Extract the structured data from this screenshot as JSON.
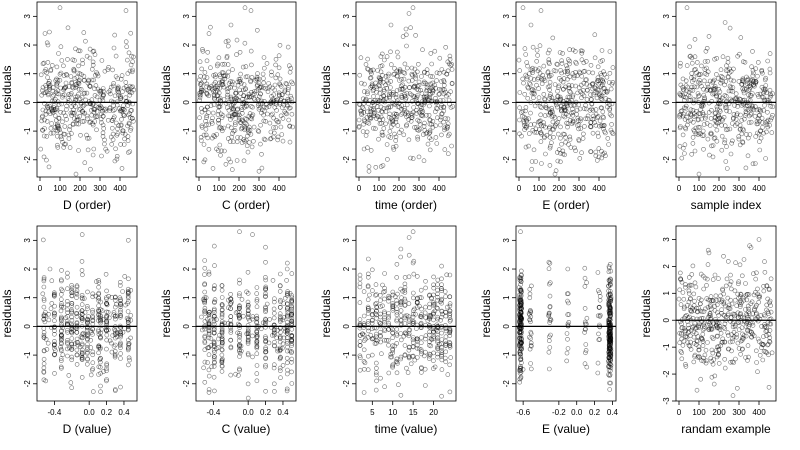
{
  "figure": {
    "grid": "2x5",
    "background": "#ffffff",
    "point_color": "#000000",
    "reference_line_color": "#000000",
    "marker": "open-circle"
  },
  "chart_data": [
    {
      "type": "scatter",
      "id": "d-order",
      "xlabel": "D (order)",
      "ylabel": "residuals",
      "xlim": [
        -15,
        485
      ],
      "ylim": [
        -2.6,
        3.5
      ],
      "xticks": [
        0,
        100,
        200,
        300,
        400
      ],
      "xtick_labels": [
        "0",
        "100",
        "200",
        "300",
        "400"
      ],
      "yticks": [
        -2,
        -1,
        0,
        1,
        2,
        3
      ],
      "ytick_labels": [
        "-2",
        "-1",
        "0",
        "1",
        "2",
        "3"
      ],
      "reference_line_y": 0,
      "grid": false,
      "pattern": "uniform",
      "x_domain": [
        0,
        470
      ],
      "n_points": 470,
      "highlighted_points": [
        [
          100,
          3.3
        ],
        [
          40,
          2.0
        ],
        [
          140,
          2.6
        ],
        [
          430,
          3.2
        ],
        [
          20,
          -1.9
        ],
        [
          180,
          -2.5
        ],
        [
          360,
          -2.6
        ],
        [
          410,
          -2.3
        ]
      ]
    },
    {
      "type": "scatter",
      "id": "c-order",
      "xlabel": "C (order)",
      "ylabel": "residuals",
      "xlim": [
        -15,
        485
      ],
      "ylim": [
        -2.6,
        3.5
      ],
      "xticks": [
        0,
        100,
        200,
        300,
        400
      ],
      "xtick_labels": [
        "0",
        "100",
        "200",
        "300",
        "400"
      ],
      "yticks": [
        -2,
        -1,
        0,
        1,
        2,
        3
      ],
      "ytick_labels": [
        "-2",
        "-1",
        "0",
        "1",
        "2",
        "3"
      ],
      "reference_line_y": 0,
      "grid": false,
      "pattern": "uniform",
      "x_domain": [
        0,
        470
      ],
      "n_points": 470,
      "highlighted_points": [
        [
          230,
          3.3
        ],
        [
          260,
          3.2
        ],
        [
          50,
          2.4
        ],
        [
          160,
          2.7
        ],
        [
          30,
          -2.0
        ],
        [
          70,
          -2.3
        ],
        [
          300,
          -2.4
        ]
      ]
    },
    {
      "type": "scatter",
      "id": "time-order",
      "xlabel": "time (order)",
      "ylabel": "residuals",
      "xlim": [
        -15,
        485
      ],
      "ylim": [
        -2.6,
        3.5
      ],
      "xticks": [
        0,
        100,
        200,
        300,
        400
      ],
      "xtick_labels": [
        "0",
        "100",
        "200",
        "300",
        "400"
      ],
      "yticks": [
        -2,
        -1,
        0,
        1,
        2,
        3
      ],
      "ytick_labels": [
        "-2",
        "-1",
        "0",
        "1",
        "2",
        "3"
      ],
      "reference_line_y": 0,
      "grid": false,
      "pattern": "uniform",
      "x_domain": [
        0,
        470
      ],
      "n_points": 470,
      "highlighted_points": [
        [
          270,
          3.3
        ],
        [
          250,
          3.1
        ],
        [
          160,
          2.7
        ],
        [
          50,
          -2.4
        ],
        [
          120,
          -2.2
        ],
        [
          300,
          -1.9
        ]
      ]
    },
    {
      "type": "scatter",
      "id": "e-order",
      "xlabel": "E (order)",
      "ylabel": "residuals",
      "xlim": [
        -15,
        485
      ],
      "ylim": [
        -2.6,
        3.5
      ],
      "xticks": [
        0,
        100,
        200,
        300,
        400
      ],
      "xtick_labels": [
        "0",
        "100",
        "200",
        "300",
        "400"
      ],
      "yticks": [
        -2,
        -1,
        0,
        1,
        2,
        3
      ],
      "ytick_labels": [
        "-2",
        "-1",
        "0",
        "1",
        "2",
        "3"
      ],
      "reference_line_y": 0,
      "grid": false,
      "pattern": "uniform",
      "x_domain": [
        0,
        470
      ],
      "n_points": 470,
      "highlighted_points": [
        [
          20,
          3.3
        ],
        [
          110,
          3.2
        ],
        [
          60,
          2.7
        ],
        [
          180,
          -2.5
        ],
        [
          300,
          -2.6
        ],
        [
          400,
          -1.9
        ]
      ]
    },
    {
      "type": "scatter",
      "id": "sample-index",
      "xlabel": "sample index",
      "ylabel": "residuals",
      "xlim": [
        -15,
        485
      ],
      "ylim": [
        -2.6,
        3.5
      ],
      "xticks": [
        0,
        100,
        200,
        300,
        400
      ],
      "xtick_labels": [
        "0",
        "100",
        "200",
        "300",
        "400"
      ],
      "yticks": [
        -2,
        -1,
        0,
        1,
        2,
        3
      ],
      "ytick_labels": [
        "-2",
        "-1",
        "0",
        "1",
        "2",
        "3"
      ],
      "reference_line_y": 0,
      "grid": false,
      "pattern": "uniform",
      "x_domain": [
        0,
        470
      ],
      "n_points": 470,
      "highlighted_points": [
        [
          40,
          3.3
        ],
        [
          80,
          2.2
        ],
        [
          150,
          2.3
        ],
        [
          100,
          -2.5
        ],
        [
          170,
          -1.9
        ],
        [
          260,
          -1.8
        ]
      ]
    },
    {
      "type": "scatter",
      "id": "d-value",
      "xlabel": "D (value)",
      "ylabel": "residuals",
      "xlim": [
        -0.6,
        0.55
      ],
      "ylim": [
        -2.6,
        3.5
      ],
      "xticks": [
        -0.4,
        0.0,
        0.2,
        0.4
      ],
      "xtick_labels": [
        "-0.4",
        "0.0",
        "0.2",
        "0.4"
      ],
      "yticks": [
        -2,
        -1,
        0,
        1,
        2,
        3
      ],
      "ytick_labels": [
        "-2",
        "-1",
        "0",
        "1",
        "2",
        "3"
      ],
      "reference_line_y": 0,
      "grid": false,
      "pattern": "columns",
      "x_levels": [
        -0.52,
        -0.4,
        -0.32,
        -0.25,
        -0.2,
        -0.14,
        -0.08,
        -0.02,
        0.04,
        0.11,
        0.13,
        0.2,
        0.3,
        0.36,
        0.45
      ],
      "n_points": 470,
      "highlighted_points": [
        [
          -0.08,
          3.2
        ],
        [
          0.45,
          3.0
        ],
        [
          -0.45,
          2.0
        ],
        [
          0.13,
          -2.6
        ],
        [
          0.3,
          -2.2
        ],
        [
          -0.5,
          -1.9
        ]
      ]
    },
    {
      "type": "scatter",
      "id": "c-value",
      "xlabel": "C (value)",
      "ylabel": "residuals",
      "xlim": [
        -0.6,
        0.55
      ],
      "ylim": [
        -2.6,
        3.5
      ],
      "xticks": [
        -0.4,
        0.0,
        0.2,
        0.4
      ],
      "xtick_labels": [
        "-0.4",
        "0.0",
        "0.2",
        "0.4"
      ],
      "yticks": [
        -2,
        -1,
        0,
        1,
        2,
        3
      ],
      "ytick_labels": [
        "-2",
        "-1",
        "0",
        "1",
        "2",
        "3"
      ],
      "reference_line_y": 0,
      "grid": false,
      "pattern": "columns",
      "x_levels": [
        -0.5,
        -0.45,
        -0.39,
        -0.3,
        -0.2,
        -0.1,
        0.0,
        0.1,
        0.2,
        0.3,
        0.37,
        0.45,
        0.5
      ],
      "n_points": 470,
      "highlighted_points": [
        [
          -0.1,
          3.3
        ],
        [
          0.05,
          3.2
        ],
        [
          -0.39,
          2.8
        ],
        [
          -0.45,
          -2.3
        ],
        [
          0.0,
          -2.5
        ],
        [
          0.3,
          -2.0
        ]
      ]
    },
    {
      "type": "scatter",
      "id": "time-value",
      "xlabel": "time (value)",
      "ylabel": "residuals",
      "xlim": [
        1,
        25.5
      ],
      "ylim": [
        -2.6,
        3.5
      ],
      "xticks": [
        5,
        10,
        15,
        20
      ],
      "xtick_labels": [
        "5",
        "10",
        "15",
        "20"
      ],
      "yticks": [
        -2,
        -1,
        0,
        1,
        2,
        3
      ],
      "ytick_labels": [
        "-2",
        "-1",
        "0",
        "1",
        "2",
        "3"
      ],
      "reference_line_y": 0,
      "grid": false,
      "pattern": "columns",
      "x_levels": [
        2,
        3,
        4,
        5,
        6,
        7,
        8,
        9,
        10,
        11,
        12,
        13,
        14,
        15,
        16,
        17,
        18,
        19,
        20,
        21,
        22,
        23,
        24
      ],
      "n_points": 470,
      "highlighted_points": [
        [
          15,
          3.3
        ],
        [
          14,
          3.1
        ],
        [
          12,
          2.7
        ],
        [
          3,
          -2.6
        ],
        [
          8,
          -2.1
        ],
        [
          12,
          -2.4
        ]
      ]
    },
    {
      "type": "scatter",
      "id": "e-value",
      "xlabel": "E (value)",
      "ylabel": "residuals",
      "xlim": [
        -0.68,
        0.44
      ],
      "ylim": [
        -2.6,
        3.5
      ],
      "xticks": [
        -0.6,
        -0.2,
        0.0,
        0.2,
        0.4
      ],
      "xtick_labels": [
        "-0.6",
        "-0.2",
        "0.0",
        "0.2",
        "0.4"
      ],
      "yticks": [
        -2,
        -1,
        0,
        1,
        2,
        3
      ],
      "ytick_labels": [
        "-2",
        "-1",
        "0",
        "1",
        "2",
        "3"
      ],
      "reference_line_y": 0,
      "grid": false,
      "pattern": "clusters",
      "clusters": [
        [
          -0.63,
          0.35
        ],
        [
          0.37,
          0.45
        ],
        [
          -0.52,
          0.04
        ],
        [
          -0.1,
          0.04
        ],
        [
          0.1,
          0.04
        ],
        [
          0.25,
          0.04
        ],
        [
          -0.3,
          0.04
        ]
      ],
      "n_points": 470,
      "highlighted_points": [
        [
          -0.63,
          3.3
        ],
        [
          -0.3,
          2.2
        ],
        [
          -0.1,
          2.0
        ],
        [
          0.38,
          -2.6
        ],
        [
          -0.6,
          -1.5
        ]
      ]
    },
    {
      "type": "scatter",
      "id": "random-example",
      "xlabel": "randam example",
      "ylabel": "residuals",
      "xlim": [
        -15,
        485
      ],
      "ylim": [
        -3.0,
        3.5
      ],
      "xticks": [
        0,
        100,
        200,
        300,
        400
      ],
      "xtick_labels": [
        "0",
        "100",
        "200",
        "300",
        "400"
      ],
      "yticks": [
        -3,
        -2,
        -1,
        0,
        1,
        2,
        3
      ],
      "ytick_labels": [
        "-3",
        "-2",
        "-1",
        "0",
        "1",
        "2",
        "3"
      ],
      "reference_line_y": 0,
      "grid": false,
      "pattern": "uniform",
      "x_domain": [
        0,
        470
      ],
      "n_points": 470,
      "highlighted_points": [
        [
          400,
          3.0
        ],
        [
          360,
          2.7
        ],
        [
          150,
          2.5
        ],
        [
          270,
          -2.8
        ],
        [
          340,
          -3.0
        ],
        [
          90,
          -2.6
        ]
      ]
    }
  ]
}
